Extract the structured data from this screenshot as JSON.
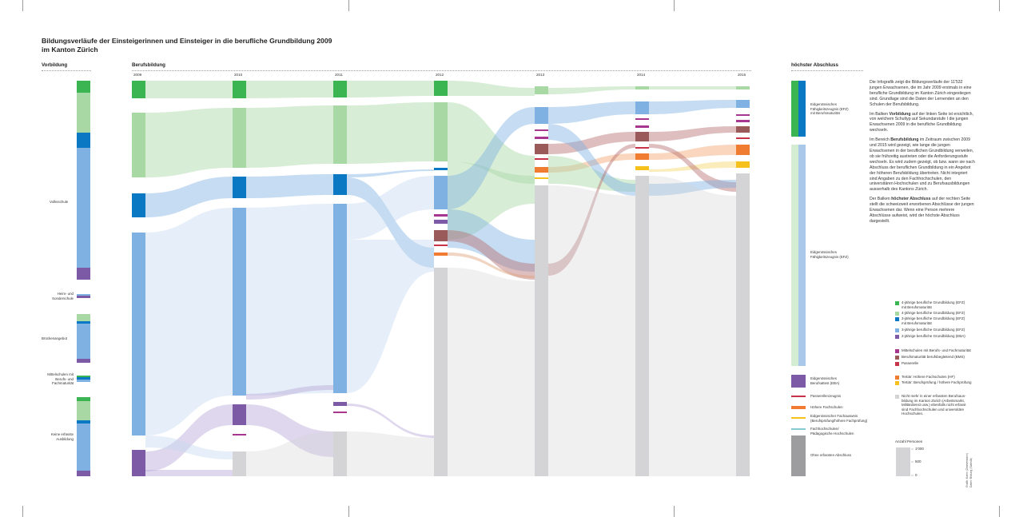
{
  "title": "Bildungsverläufe der Einsteigerinnen und Einsteiger in die berufliche Grundbildung 2009 im Kanton Zürich",
  "title_line1": "Bildungsverläufe der Einsteigerinnen und Einsteiger in die berufliche Grundbildung 2009",
  "title_line2": "im Kanton Zürich",
  "sections": {
    "vorbildung": "Vorbildung",
    "berufsbildung": "Berufsbildung",
    "abschluss": "höchster Abschluss"
  },
  "years": [
    "2009",
    "2010",
    "2011",
    "2012",
    "2013",
    "2014",
    "2015"
  ],
  "vorbildung_labels": {
    "volksschule": "Volksschule",
    "heim1": "Heim- und",
    "heim2": "Sonderschule",
    "bruecke": "Brückenangebot",
    "mittel1": "Mittelschulen mit",
    "mittel2": "Berufs- und",
    "mittel3": "Fachmaturität",
    "keine1": "Keine erfasste",
    "keine2": "Ausbildung"
  },
  "abschluss_labels": {
    "efz_bm1": "Eidgenössisches",
    "efz_bm2": "Fähigkeitszeugnis (EFZ)",
    "efz_bm3": "mit Berufsmaturität",
    "efz1": "Eidgenössisches",
    "efz2": "Fähigkeitszeugnis (EFZ)",
    "eba1": "Eidgenössisches",
    "eba2": "Berufsattest (EBA)",
    "passerelle": "Passerellenzeugnis",
    "hf": "Höhere Fachschulen",
    "fa1": "Eidgenössischer Fachausweis",
    "fa2": "(Berufsprüfung/höhere Fachprüfung)",
    "fh1": "Fachhochschulen/",
    "fh2": "Pädagogische Hochschulen",
    "ohne": "Ohne erfassten Abschluss"
  },
  "description": {
    "p1": "Die Infografik zeigt die Bildungsverläufe der 11'532 jungen Erwachsenen, die im Jahr 2009 erstmals in eine berufliche Grundbildung im Kanton Zürich eingestiegen sind. Grundlage sind die Daten der Lernenden an den Schulen der Berufsbildung.",
    "p2_pre": "Im Balken ",
    "p2_bold": "Vorbildung",
    "p2_post": " auf der linken Seite ist ersichtlich, von welchem Schultyp auf Sekundarstufe I die jungen Erwachsenen 2009 in die berufliche Grundbildung wechseln.",
    "p3_pre": "Im Bereich ",
    "p3_bold": "Berufsbildung",
    "p3_post": " im Zeitraum zwischen 2009 und 2015 wird gezeigt, wie lange die jungen Erwachsenen in der beruflichen Grundbildung verweilen, ob sie frühzeitig austreten oder die Anforderungsstufe wechseln. Es wird zudem gezeigt, ob bzw. wann sie nach Abschluss der beruflichen Grundbildung in ein Angebot der höheren Berufsbildung übertreten. Nicht integriert sind Angaben zu den Fachhochschulen, den universitären Hochschulen und zu Berufsausbildungen ausserhalb des Kantons Zürich.",
    "p4_pre": "Der Balken ",
    "p4_bold": "höchster Abschluss",
    "p4_post": " auf der rechten Seite stellt die schweizweit erworbenen Abschlüsse der jungen Erwachsenen dar. Wenn eine Person mehrere Abschlüsse aufweist, wird der höchste Abschluss dargestellt."
  },
  "legend": {
    "l1a": "4-jährige berufliche Grundbildung (EFZ)",
    "l1b": "mit Berufsmaturität",
    "l2": "4-jährige berufliche Grundbildung (EFZ)",
    "l3a": "3-jährige berufliche Grundbildung (EFZ)",
    "l3b": "mit Berufsmaturität",
    "l4": "3-jährige berufliche Grundbildung (EFZ)",
    "l5": "2-jährige berufliche Grundbildung (EBA)",
    "l6": "Mittelschulen mit Berufs- und Fachmaturität",
    "l7": "Berufsmaturität berufsbegleitend (BMS)",
    "l8": "Passerelle",
    "l9": "Tertiär: Höhere Fachschulen (HF)",
    "l10": "Tertiär: Berufsprüfung / höhere Fachprüfung",
    "l11a": "Nicht mehr in einer erfassten Berufsaus-",
    "l11b": "bildung im Kanton Zürich (Arbeitsmarkt,",
    "l11c": "Militärdienst usw.) ebenfalls nicht erfasst",
    "l11d": "sind Fachhochschulen und universitäre",
    "l11e": "Hochschulen."
  },
  "scale": {
    "title": "Anzahl Personen",
    "t1000": "1'000",
    "t500": "500",
    "t0": "0"
  },
  "credit": {
    "line1": "Grafik: Katrin (Zimmermann)",
    "line2": "Daten: Bildung (Statistik)"
  },
  "colors": {
    "efz4_bm": "#3bb552",
    "efz4": "#a8d8a4",
    "efz3_bm": "#0b78c4",
    "efz3": "#7fb2e2",
    "eba": "#7d5aa6",
    "ms": "#a8368f",
    "bms": "#9b5a5a",
    "passerelle": "#c7344a",
    "hf": "#f07c31",
    "bp": "#f6c11d",
    "none": "#d4d4d6",
    "fh": "#86c9cf"
  }
}
